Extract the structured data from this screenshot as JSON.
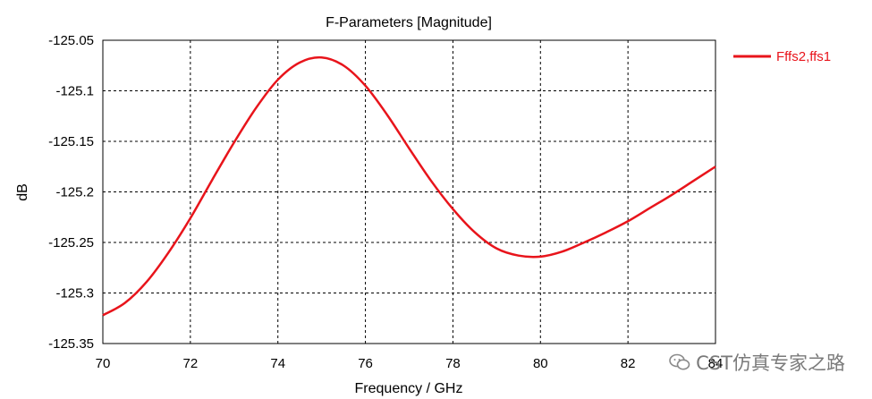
{
  "chart_data": {
    "type": "line",
    "title": "F-Parameters [Magnitude]",
    "xlabel": "Frequency / GHz",
    "ylabel": "dB",
    "xlim": [
      70,
      84
    ],
    "ylim": [
      -125.35,
      -125.05
    ],
    "xticks": [
      70,
      72,
      74,
      76,
      78,
      80,
      82,
      84
    ],
    "xtick_labels": [
      "70",
      "72",
      "74",
      "76",
      "78",
      "80",
      "82",
      "84"
    ],
    "yticks": [
      -125.05,
      -125.1,
      -125.15,
      -125.2,
      -125.25,
      -125.3,
      -125.35
    ],
    "ytick_labels": [
      "-125.05",
      "-125.1",
      "-125.15",
      "-125.2",
      "-125.25",
      "-125.3",
      "-125.35"
    ],
    "grid": true,
    "legend_position": "top-right outside",
    "series": [
      {
        "name": "Fffs2,ffs1",
        "color": "#e8141b",
        "x": [
          70,
          70.5,
          71,
          71.5,
          72,
          72.5,
          73,
          73.5,
          74,
          74.5,
          75,
          75.5,
          76,
          76.5,
          77,
          77.5,
          78,
          78.5,
          79,
          79.5,
          80,
          80.5,
          81,
          81.5,
          82,
          82.5,
          83,
          83.5,
          84
        ],
        "y": [
          -125.322,
          -125.31,
          -125.289,
          -125.26,
          -125.226,
          -125.188,
          -125.151,
          -125.117,
          -125.089,
          -125.072,
          -125.067,
          -125.075,
          -125.095,
          -125.124,
          -125.157,
          -125.189,
          -125.217,
          -125.24,
          -125.256,
          -125.263,
          -125.264,
          -125.259,
          -125.25,
          -125.24,
          -125.229,
          -125.216,
          -125.203,
          -125.189,
          -125.175
        ]
      }
    ]
  },
  "watermark": {
    "text": "CST仿真专家之路",
    "icon": "wechat-icon"
  }
}
